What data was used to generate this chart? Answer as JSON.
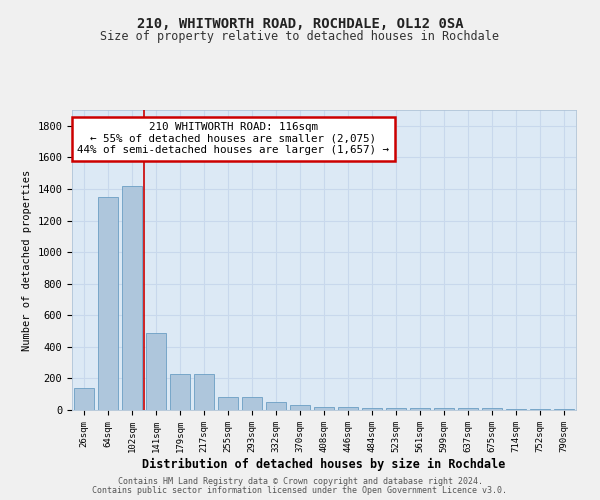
{
  "title1": "210, WHITWORTH ROAD, ROCHDALE, OL12 0SA",
  "title2": "Size of property relative to detached houses in Rochdale",
  "xlabel": "Distribution of detached houses by size in Rochdale",
  "ylabel": "Number of detached properties",
  "footer1": "Contains HM Land Registry data © Crown copyright and database right 2024.",
  "footer2": "Contains public sector information licensed under the Open Government Licence v3.0.",
  "bin_labels": [
    "26sqm",
    "64sqm",
    "102sqm",
    "141sqm",
    "179sqm",
    "217sqm",
    "255sqm",
    "293sqm",
    "332sqm",
    "370sqm",
    "408sqm",
    "446sqm",
    "484sqm",
    "523sqm",
    "561sqm",
    "599sqm",
    "637sqm",
    "675sqm",
    "714sqm",
    "752sqm",
    "790sqm"
  ],
  "bar_heights": [
    140,
    1350,
    1420,
    490,
    225,
    225,
    85,
    85,
    50,
    30,
    20,
    20,
    15,
    10,
    10,
    10,
    10,
    10,
    5,
    5,
    5
  ],
  "bar_color": "#aec6dc",
  "bar_edgecolor": "#6b9ec4",
  "bg_color": "#dce9f5",
  "grid_color": "#c8d8ec",
  "annotation_text": "210 WHITWORTH ROAD: 116sqm\n← 55% of detached houses are smaller (2,075)\n44% of semi-detached houses are larger (1,657) →",
  "annotation_box_color": "#ffffff",
  "annotation_border_color": "#cc0000",
  "red_line_x": 2.5,
  "ylim": [
    0,
    1900
  ],
  "yticks": [
    0,
    200,
    400,
    600,
    800,
    1000,
    1200,
    1400,
    1600,
    1800
  ],
  "fig_bg": "#f0f0f0"
}
